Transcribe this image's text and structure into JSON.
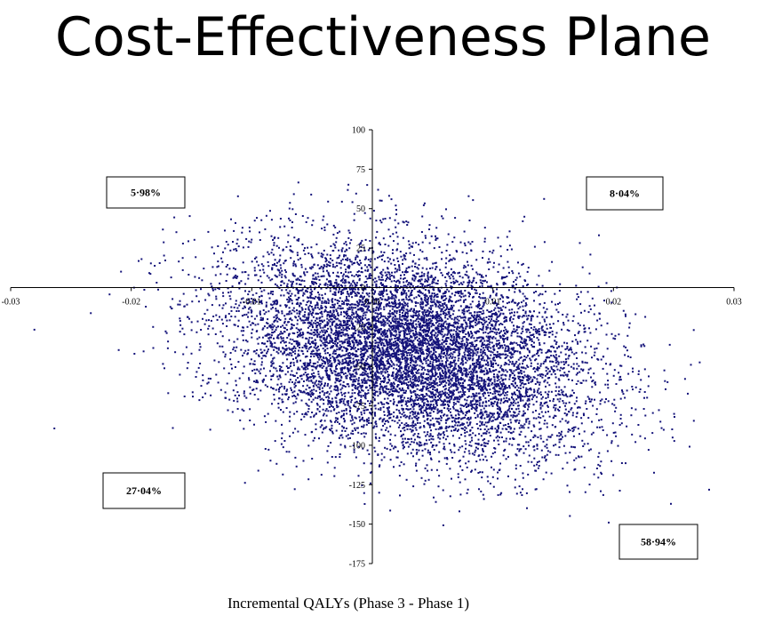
{
  "title": "Cost-Effectiveness Plane",
  "chart_data": {
    "type": "scatter",
    "title": "Cost-Effectiveness Plane",
    "xlabel": "Incremental QALYs (Phase 3 - Phase 1)",
    "ylabel": "",
    "xlim": [
      -0.03,
      0.03
    ],
    "ylim": [
      -175,
      100
    ],
    "x_ticks": [
      -0.03,
      -0.02,
      -0.01,
      0.0,
      0.01,
      0.02,
      0.03
    ],
    "x_tick_labels": [
      "-0.03",
      "-0.02",
      "-0.01",
      "0.00",
      "0.01",
      "0.02",
      "0.03"
    ],
    "y_ticks": [
      100,
      75,
      50,
      25,
      0,
      -25,
      -50,
      -75,
      -100,
      -125,
      -150,
      -175
    ],
    "y_tick_labels": [
      "100",
      "75",
      "50",
      "25",
      "0",
      "-25",
      "-50",
      "-75",
      "-100",
      "-125",
      "-150",
      "-175"
    ],
    "point_color": "#14137a",
    "grid": false,
    "cloud": {
      "n_points": 9000,
      "mean": [
        0.003,
        -40
      ],
      "sd": [
        0.0075,
        33
      ],
      "correlation": -0.3
    },
    "quadrant_labels": [
      {
        "quadrant": "upper-left",
        "text": "5·98%"
      },
      {
        "quadrant": "upper-right",
        "text": "8·04%"
      },
      {
        "quadrant": "lower-left",
        "text": "27·04%"
      },
      {
        "quadrant": "lower-right",
        "text": "58·94%"
      }
    ]
  }
}
